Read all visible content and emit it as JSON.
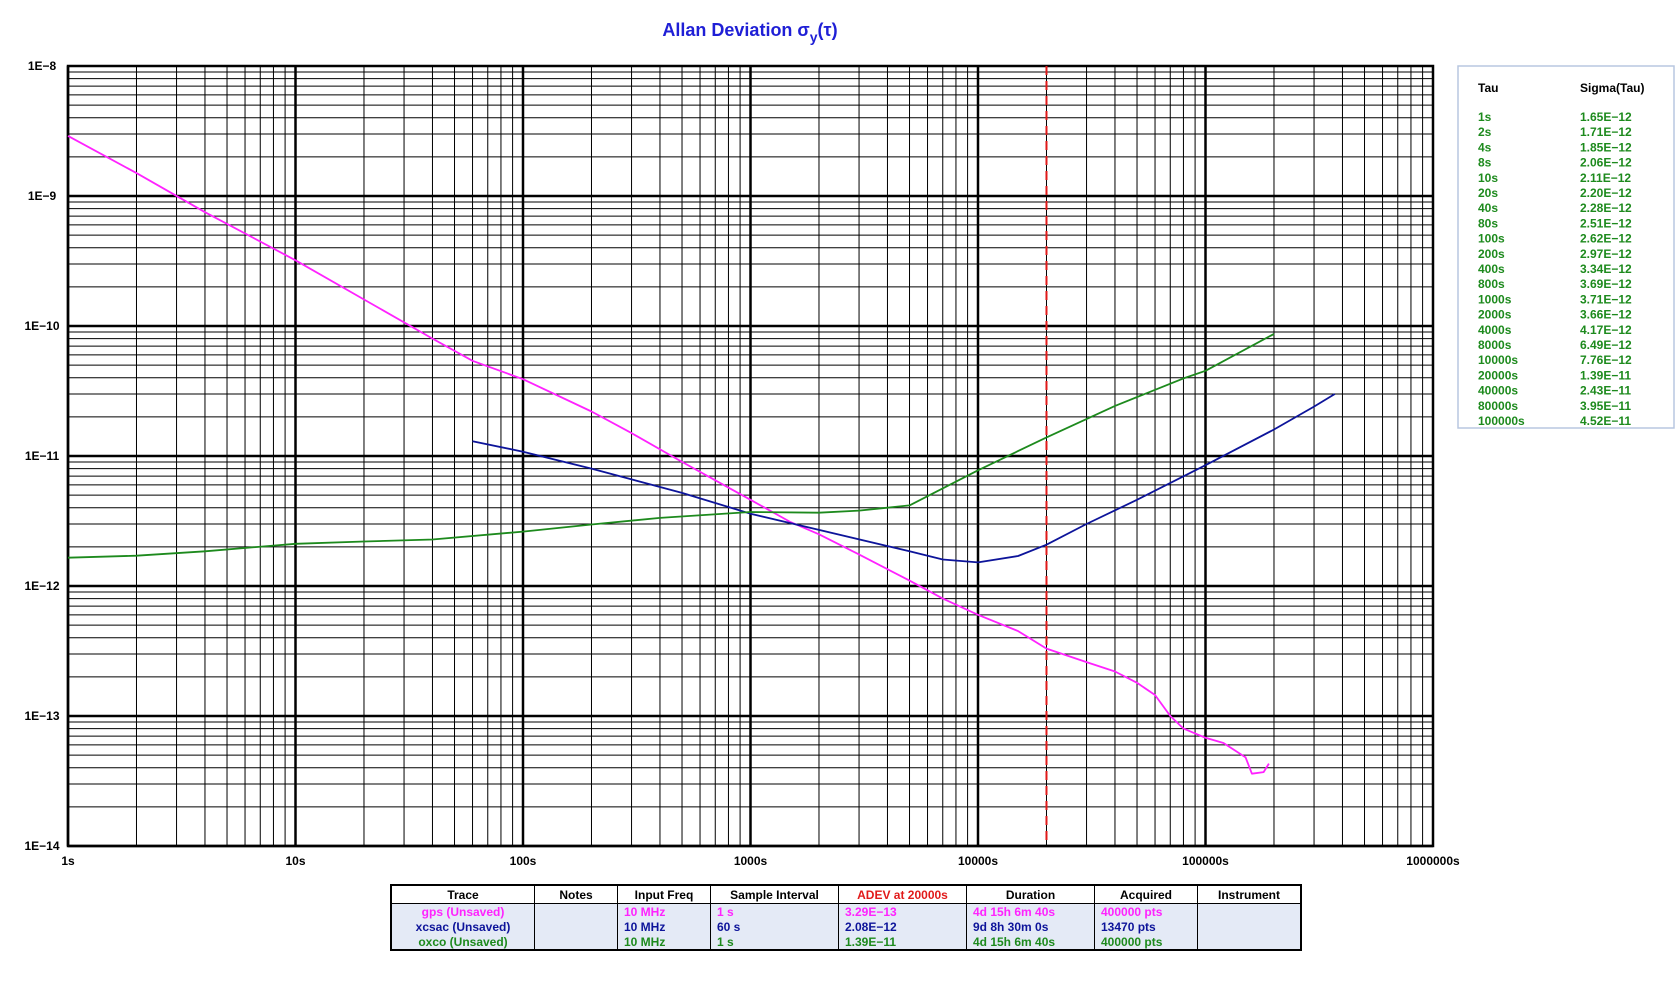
{
  "title": "Allan Deviation σy(τ)",
  "title_parts": {
    "main": "Allan Deviation σ",
    "sub": "y",
    "tail": "(τ)"
  },
  "colors": {
    "gps": "#ff22ff",
    "xcsac": "#0d149a",
    "oxco": "#1d8a1d",
    "marker": "#e11a1a",
    "title": "#1f1fd6"
  },
  "chart_data": {
    "type": "line",
    "x_scale": "log",
    "y_scale": "log",
    "xlim": [
      1,
      1000000
    ],
    "ylim": [
      1e-14,
      1e-08
    ],
    "grid": true,
    "x_ticks": [
      "1s",
      "10s",
      "100s",
      "1000s",
      "10000s",
      "100000s",
      "1000000s"
    ],
    "y_ticks": [
      "1E−14",
      "1E−13",
      "1E−12",
      "1E−11",
      "1E−10",
      "1E−9",
      "1E−8"
    ],
    "vertical_marker_x": 20000,
    "series": [
      {
        "name": "gps (Unsaved)",
        "color": "#ff22ff",
        "x": [
          1,
          2,
          4,
          10,
          20,
          40,
          60,
          100,
          200,
          300,
          500,
          700,
          1000,
          1500,
          2000,
          3000,
          5000,
          7000,
          10000,
          15000,
          20000,
          30000,
          40000,
          50000,
          60000,
          70000,
          80000,
          100000,
          120000,
          150000,
          160000,
          180000,
          190000
        ],
        "y": [
          2.9e-09,
          1.5e-09,
          7.5e-10,
          3.2e-10,
          1.6e-10,
          8e-11,
          5.4e-11,
          3.9e-11,
          2.2e-11,
          1.5e-11,
          9e-12,
          6.5e-12,
          4.6e-12,
          3.1e-12,
          2.5e-12,
          1.75e-12,
          1.1e-12,
          8e-13,
          6e-13,
          4.5e-13,
          3.3e-13,
          2.6e-13,
          2.2e-13,
          1.8e-13,
          1.45e-13,
          1e-13,
          8e-14,
          6.8e-14,
          6.2e-14,
          4.8e-14,
          3.6e-14,
          3.7e-14,
          4.3e-14
        ]
      },
      {
        "name": "xcsac (Unsaved)",
        "color": "#0d149a",
        "x": [
          60,
          100,
          200,
          500,
          1000,
          2000,
          5000,
          7000,
          10000,
          15000,
          20000,
          30000,
          50000,
          100000,
          200000,
          300000,
          370000
        ],
        "y": [
          1.3e-11,
          1.08e-11,
          8e-12,
          5.2e-12,
          3.6e-12,
          2.7e-12,
          1.85e-12,
          1.6e-12,
          1.52e-12,
          1.7e-12,
          2.08e-12,
          3e-12,
          4.6e-12,
          8.5e-12,
          1.6e-11,
          2.4e-11,
          3e-11
        ]
      },
      {
        "name": "oxco (Unsaved)",
        "color": "#1d8a1d",
        "x": [
          1,
          2,
          4,
          10,
          20,
          40,
          100,
          200,
          400,
          1000,
          2000,
          3000,
          5000,
          10000,
          20000,
          40000,
          80000,
          100000,
          200000
        ],
        "y": [
          1.65e-12,
          1.71e-12,
          1.85e-12,
          2.11e-12,
          2.2e-12,
          2.28e-12,
          2.62e-12,
          2.97e-12,
          3.34e-12,
          3.71e-12,
          3.66e-12,
          3.8e-12,
          4.17e-12,
          7.76e-12,
          1.39e-11,
          2.43e-11,
          3.95e-11,
          4.52e-11,
          8.7e-11
        ]
      }
    ]
  },
  "tau_table": {
    "headers": [
      "Tau",
      "Sigma(Tau)"
    ],
    "rows": [
      [
        "1s",
        "1.65E−12"
      ],
      [
        "2s",
        "1.71E−12"
      ],
      [
        "4s",
        "1.85E−12"
      ],
      [
        "8s",
        "2.06E−12"
      ],
      [
        "10s",
        "2.11E−12"
      ],
      [
        "20s",
        "2.20E−12"
      ],
      [
        "40s",
        "2.28E−12"
      ],
      [
        "80s",
        "2.51E−12"
      ],
      [
        "100s",
        "2.62E−12"
      ],
      [
        "200s",
        "2.97E−12"
      ],
      [
        "400s",
        "3.34E−12"
      ],
      [
        "800s",
        "3.69E−12"
      ],
      [
        "1000s",
        "3.71E−12"
      ],
      [
        "2000s",
        "3.66E−12"
      ],
      [
        "4000s",
        "4.17E−12"
      ],
      [
        "8000s",
        "6.49E−12"
      ],
      [
        "10000s",
        "7.76E−12"
      ],
      [
        "20000s",
        "1.39E−11"
      ],
      [
        "40000s",
        "2.43E−11"
      ],
      [
        "80000s",
        "3.95E−11"
      ],
      [
        "100000s",
        "4.52E−11"
      ]
    ]
  },
  "trace_table": {
    "headers": [
      "Trace",
      "Notes",
      "Input Freq",
      "Sample Interval",
      "ADEV at 20000s",
      "Duration",
      "Acquired",
      "Instrument"
    ],
    "rows": [
      {
        "trace": "gps (Unsaved)",
        "notes": "",
        "freq": "10 MHz",
        "interval": "1 s",
        "adev": "3.29E−13",
        "duration": "4d 15h 6m 40s",
        "acquired": "400000 pts",
        "instrument": "",
        "color": "#ff22ff"
      },
      {
        "trace": "xcsac (Unsaved)",
        "notes": "",
        "freq": "10 MHz",
        "interval": "60 s",
        "adev": "2.08E−12",
        "duration": "9d 8h 30m 0s",
        "acquired": "13470 pts",
        "instrument": "",
        "color": "#0d149a"
      },
      {
        "trace": "oxco (Unsaved)",
        "notes": "",
        "freq": "10 MHz",
        "interval": "1 s",
        "adev": "1.39E−11",
        "duration": "4d 15h 6m 40s",
        "acquired": "400000 pts",
        "instrument": "",
        "color": "#1d8a1d"
      }
    ]
  }
}
